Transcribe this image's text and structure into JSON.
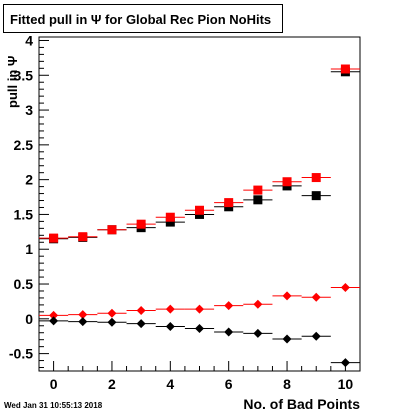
{
  "title": "Fitted pull in  Ψ  for Global Rec Pion NoHits",
  "timestamp": "Wed Jan 31 10:55:13 2018",
  "chart_data": {
    "type": "scatter",
    "title": "Fitted pull in  Ψ  for Global Rec Pion NoHits",
    "xlabel": "No. of Bad Points",
    "ylabel": "pull in  Ψ",
    "xlim": [
      -0.5,
      10.5
    ],
    "ylim": [
      -0.75,
      4.05
    ],
    "xticks": [
      0,
      2,
      4,
      6,
      8,
      10
    ],
    "yticks": [
      -0.5,
      0,
      0.5,
      1,
      1.5,
      2,
      2.5,
      3,
      3.5,
      4
    ],
    "x": [
      0,
      1,
      2,
      3,
      4,
      5,
      6,
      7,
      8,
      9,
      10
    ],
    "series": [
      {
        "marker": "square",
        "color": "#000000",
        "values": [
          1.15,
          1.17,
          1.28,
          1.31,
          1.39,
          1.5,
          1.61,
          1.71,
          1.91,
          1.77,
          3.55
        ]
      },
      {
        "marker": "square",
        "color": "#ff0000",
        "values": [
          1.16,
          1.18,
          1.28,
          1.36,
          1.46,
          1.56,
          1.67,
          1.85,
          1.97,
          2.03,
          3.59
        ]
      },
      {
        "marker": "diamond",
        "color": "#ff0000",
        "values": [
          0.05,
          0.06,
          0.08,
          0.12,
          0.14,
          0.14,
          0.19,
          0.21,
          0.33,
          0.31,
          0.45
        ]
      },
      {
        "marker": "diamond",
        "color": "#000000",
        "values": [
          -0.03,
          -0.04,
          -0.05,
          -0.07,
          -0.11,
          -0.14,
          -0.19,
          -0.21,
          -0.29,
          -0.25,
          -0.63
        ]
      }
    ],
    "grid": false,
    "legend": "none"
  }
}
